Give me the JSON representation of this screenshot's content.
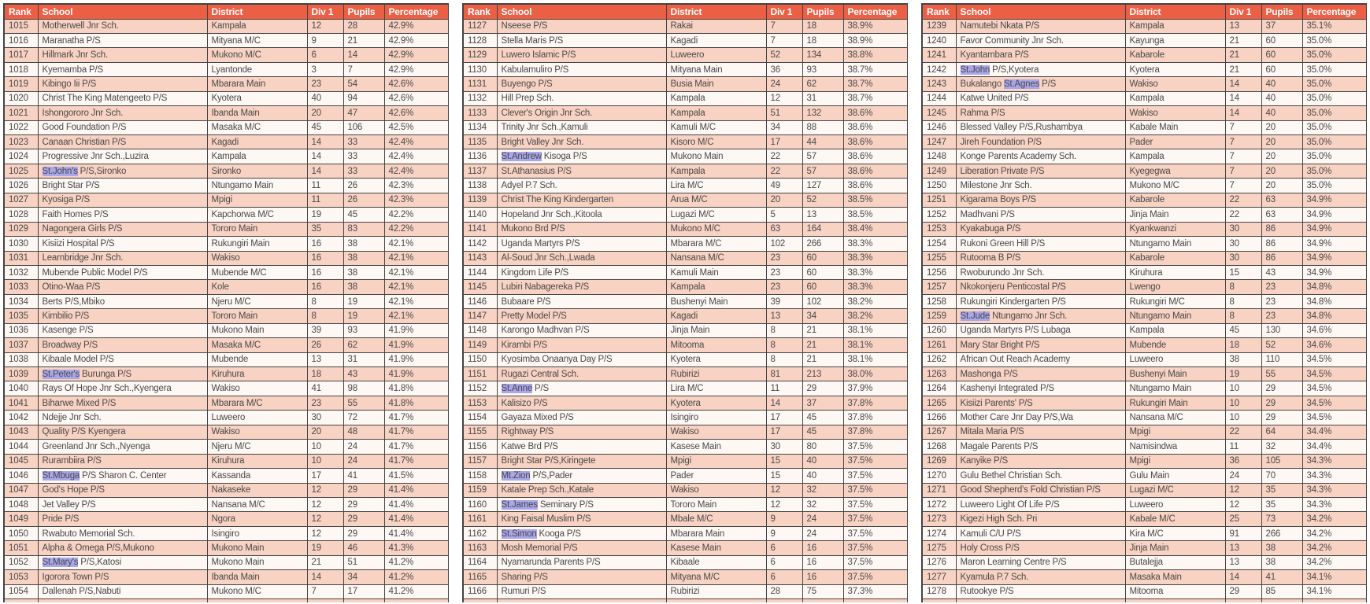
{
  "style": {
    "header_bg": "#eb5f45",
    "header_text": "#ffffff",
    "row_pink": "#f8d2c2",
    "row_light": "#fdf8f4",
    "highlight": "#a9a6e9",
    "border": "#444444",
    "text": "#4a4a4a",
    "page_bg": "#ffffff"
  },
  "columns": [
    "Rank",
    "School",
    "District",
    "Div 1",
    "Pupils",
    "Percentage"
  ],
  "tables": [
    {
      "name": "ranks-1015-1054",
      "rows": [
        [
          "1015",
          "Motherwell Jnr Sch.",
          "Kampala",
          "12",
          "28",
          "42.9%"
        ],
        [
          "1016",
          "Maranatha P/S",
          "Mityana M/C",
          "9",
          "21",
          "42.9%"
        ],
        [
          "1017",
          "Hillmark Jnr Sch.",
          "Mukono M/C",
          "6",
          "14",
          "42.9%"
        ],
        [
          "1018",
          "Kyemamba P/S",
          "Lyantonde",
          "3",
          "7",
          "42.9%"
        ],
        [
          "1019",
          "Kibingo Iii P/S",
          "Mbarara Main",
          "23",
          "54",
          "42.6%"
        ],
        [
          "1020",
          "Christ The King Matengeeto P/S",
          "Kyotera",
          "40",
          "94",
          "42.6%"
        ],
        [
          "1021",
          "Ishongororo Jnr Sch.",
          "Ibanda Main",
          "20",
          "47",
          "42.6%"
        ],
        [
          "1022",
          "Good Foundation P/S",
          "Masaka M/C",
          "45",
          "106",
          "42.5%"
        ],
        [
          "1023",
          "Canaan Christian P/S",
          "Kagadi",
          "14",
          "33",
          "42.4%"
        ],
        [
          "1024",
          "Progressive Jnr Sch.,Luzira",
          "Kampala",
          "14",
          "33",
          "42.4%"
        ],
        [
          "1025",
          [
            [
              "St.John's",
              1
            ],
            [
              " P/S,Sironko",
              0
            ]
          ],
          "Sironko",
          "14",
          "33",
          "42.4%"
        ],
        [
          "1026",
          "Bright Star P/S",
          "Ntungamo Main",
          "11",
          "26",
          "42.3%"
        ],
        [
          "1027",
          "Kyosiga P/S",
          "Mpigi",
          "11",
          "26",
          "42.3%"
        ],
        [
          "1028",
          "Faith Homes P/S",
          "Kapchorwa M/C",
          "19",
          "45",
          "42.2%"
        ],
        [
          "1029",
          "Nagongera Girls P/S",
          "Tororo Main",
          "35",
          "83",
          "42.2%"
        ],
        [
          "1030",
          "Kisiizi Hospital P/S",
          "Rukungiri Main",
          "16",
          "38",
          "42.1%"
        ],
        [
          "1031",
          "Learnbridge Jnr Sch.",
          "Wakiso",
          "16",
          "38",
          "42.1%"
        ],
        [
          "1032",
          "Mubende Public Model P/S",
          "Mubende M/C",
          "16",
          "38",
          "42.1%"
        ],
        [
          "1033",
          "Otino-Waa P/S",
          "Kole",
          "16",
          "38",
          "42.1%"
        ],
        [
          "1034",
          "Berts P/S,Mbiko",
          "Njeru M/C",
          "8",
          "19",
          "42.1%"
        ],
        [
          "1035",
          "Kimbilio P/S",
          "Tororo Main",
          "8",
          "19",
          "42.1%"
        ],
        [
          "1036",
          "Kasenge P/S",
          "Mukono Main",
          "39",
          "93",
          "41.9%"
        ],
        [
          "1037",
          "Broadway P/S",
          "Masaka M/C",
          "26",
          "62",
          "41.9%"
        ],
        [
          "1038",
          "Kibaale Model P/S",
          "Mubende",
          "13",
          "31",
          "41.9%"
        ],
        [
          "1039",
          [
            [
              "St.Peter's",
              1
            ],
            [
              " Burunga P/S",
              0
            ]
          ],
          "Kiruhura",
          "18",
          "43",
          "41.9%"
        ],
        [
          "1040",
          "Rays Of Hope Jnr Sch.,Kyengera",
          "Wakiso",
          "41",
          "98",
          "41.8%"
        ],
        [
          "1041",
          "Biharwe Mixed P/S",
          "Mbarara M/C",
          "23",
          "55",
          "41.8%"
        ],
        [
          "1042",
          "Ndejje Jnr Sch.",
          "Luweero",
          "30",
          "72",
          "41.7%"
        ],
        [
          "1043",
          "Quality P/S Kyengera",
          "Wakiso",
          "20",
          "48",
          "41.7%"
        ],
        [
          "1044",
          "Greenland Jnr Sch.,Nyenga",
          "Njeru M/C",
          "10",
          "24",
          "41.7%"
        ],
        [
          "1045",
          "Rurambiira P/S",
          "Kiruhura",
          "10",
          "24",
          "41.7%"
        ],
        [
          "1046",
          [
            [
              "St.Mbuga",
              1
            ],
            [
              " P/S Sharon C. Center",
              0
            ]
          ],
          "Kassanda",
          "17",
          "41",
          "41.5%"
        ],
        [
          "1047",
          "God's Hope P/S",
          "Nakaseke",
          "12",
          "29",
          "41.4%"
        ],
        [
          "1048",
          "Jet Valley P/S",
          "Nansana M/C",
          "12",
          "29",
          "41.4%"
        ],
        [
          "1049",
          "Pride P/S",
          "Ngora",
          "12",
          "29",
          "41.4%"
        ],
        [
          "1050",
          "Rwabuto Memorial Sch.",
          "Isingiro",
          "12",
          "29",
          "41.4%"
        ],
        [
          "1051",
          "Alpha & Omega P/S,Mukono",
          "Mukono Main",
          "19",
          "46",
          "41.3%"
        ],
        [
          "1052",
          [
            [
              "St.Mary's",
              1
            ],
            [
              " P/S,Katosi",
              0
            ]
          ],
          "Mukono Main",
          "21",
          "51",
          "41.2%"
        ],
        [
          "1053",
          "Igorora Town P/S",
          "Ibanda Main",
          "14",
          "34",
          "41.2%"
        ],
        [
          "1054",
          "Dallenah P/S,Nabuti",
          "Mukono M/C",
          "7",
          "17",
          "41.2%"
        ],
        [
          "",
          "",
          "",
          "",
          "",
          ""
        ]
      ]
    },
    {
      "name": "ranks-1127-1166",
      "rows": [
        [
          "1127",
          "Nseese P/S",
          "Rakai",
          "7",
          "18",
          "38.9%"
        ],
        [
          "1128",
          "Stella Maris P/S",
          "Kagadi",
          "7",
          "18",
          "38.9%"
        ],
        [
          "1129",
          "Luwero Islamic P/S",
          "Luweero",
          "52",
          "134",
          "38.8%"
        ],
        [
          "1130",
          "Kabulamuliro P/S",
          "Mityana Main",
          "36",
          "93",
          "38.7%"
        ],
        [
          "1131",
          "Buyengo P/S",
          "Busia Main",
          "24",
          "62",
          "38.7%"
        ],
        [
          "1132",
          "Hill Prep Sch.",
          "Kampala",
          "12",
          "31",
          "38.7%"
        ],
        [
          "1133",
          "Clever's Origin Jnr Sch.",
          "Kampala",
          "51",
          "132",
          "38.6%"
        ],
        [
          "1134",
          "Trinity Jnr Sch.,Kamuli",
          "Kamuli M/C",
          "34",
          "88",
          "38.6%"
        ],
        [
          "1135",
          "Bright Valley Jnr Sch.",
          "Kisoro M/C",
          "17",
          "44",
          "38.6%"
        ],
        [
          "1136",
          [
            [
              "St.Andrew",
              1
            ],
            [
              " Kisoga P/S",
              0
            ]
          ],
          "Mukono Main",
          "22",
          "57",
          "38.6%"
        ],
        [
          "1137",
          "St.Athanasius P/S",
          "Kampala",
          "22",
          "57",
          "38.6%"
        ],
        [
          "1138",
          "Adyel P.7 Sch.",
          "Lira M/C",
          "49",
          "127",
          "38.6%"
        ],
        [
          "1139",
          "Christ The King Kindergarten",
          "Arua M/C",
          "20",
          "52",
          "38.5%"
        ],
        [
          "1140",
          "Hopeland Jnr Sch.,Kitoola",
          "Lugazi M/C",
          "5",
          "13",
          "38.5%"
        ],
        [
          "1141",
          "Mukono Brd P/S",
          "Mukono M/C",
          "63",
          "164",
          "38.4%"
        ],
        [
          "1142",
          "Uganda Martyrs P/S",
          "Mbarara M/C",
          "102",
          "266",
          "38.3%"
        ],
        [
          "1143",
          "Al-Soud Jnr Sch.,Lwada",
          "Nansana M/C",
          "23",
          "60",
          "38.3%"
        ],
        [
          "1144",
          "Kingdom Life P/S",
          "Kamuli Main",
          "23",
          "60",
          "38.3%"
        ],
        [
          "1145",
          "Lubiri Nabagereka P/S",
          "Kampala",
          "23",
          "60",
          "38.3%"
        ],
        [
          "1146",
          "Bubaare P/S",
          "Bushenyi Main",
          "39",
          "102",
          "38.2%"
        ],
        [
          "1147",
          "Pretty Model P/S",
          "Kagadi",
          "13",
          "34",
          "38.2%"
        ],
        [
          "1148",
          "Karongo Madhvan P/S",
          "Jinja Main",
          "8",
          "21",
          "38.1%"
        ],
        [
          "1149",
          "Kirambi P/S",
          "Mitooma",
          "8",
          "21",
          "38.1%"
        ],
        [
          "1150",
          "Kyosimba Onaanya Day P/S",
          "Kyotera",
          "8",
          "21",
          "38.1%"
        ],
        [
          "1151",
          "Rugazi Central Sch.",
          "Rubirizi",
          "81",
          "213",
          "38.0%"
        ],
        [
          "1152",
          [
            [
              "St.Anne",
              1
            ],
            [
              " P/S",
              0
            ]
          ],
          "Lira M/C",
          "11",
          "29",
          "37.9%"
        ],
        [
          "1153",
          "Kalisizo P/S",
          "Kyotera",
          "14",
          "37",
          "37.8%"
        ],
        [
          "1154",
          "Gayaza Mixed P/S",
          "Isingiro",
          "17",
          "45",
          "37.8%"
        ],
        [
          "1155",
          "Rightway P/S",
          "Wakiso",
          "17",
          "45",
          "37.8%"
        ],
        [
          "1156",
          "Katwe Brd P/S",
          "Kasese Main",
          "30",
          "80",
          "37.5%"
        ],
        [
          "1157",
          "Bright Star P/S,Kiringete",
          "Mpigi",
          "15",
          "40",
          "37.5%"
        ],
        [
          "1158",
          [
            [
              "Mt.Zion",
              1
            ],
            [
              " P/S,Pader",
              0
            ]
          ],
          "Pader",
          "15",
          "40",
          "37.5%"
        ],
        [
          "1159",
          "Katale Prep Sch.,Katale",
          "Wakiso",
          "12",
          "32",
          "37.5%"
        ],
        [
          "1160",
          [
            [
              "St.James",
              1
            ],
            [
              " Seminary P/S",
              0
            ]
          ],
          "Tororo Main",
          "12",
          "32",
          "37.5%"
        ],
        [
          "1161",
          "King Faisal Muslim P/S",
          "Mbale M/C",
          "9",
          "24",
          "37.5%"
        ],
        [
          "1162",
          [
            [
              "St.Simon",
              1
            ],
            [
              " Kooga P/S",
              0
            ]
          ],
          "Mbarara Main",
          "9",
          "24",
          "37.5%"
        ],
        [
          "1163",
          "Mosh Memorial P/S",
          "Kasese Main",
          "6",
          "16",
          "37.5%"
        ],
        [
          "1164",
          "Nyamarunda Parents P/S",
          "Kibaale",
          "6",
          "16",
          "37.5%"
        ],
        [
          "1165",
          "Sharing P/S",
          "Mityana M/C",
          "6",
          "16",
          "37.5%"
        ],
        [
          "1166",
          "Rumuri P/S",
          "Rubirizi",
          "28",
          "75",
          "37.3%"
        ],
        [
          "",
          "",
          "",
          "",
          "",
          ""
        ]
      ]
    },
    {
      "name": "ranks-1239-1278",
      "rows": [
        [
          "1239",
          "Namutebi Nkata P/S",
          "Kampala",
          "13",
          "37",
          "35.1%"
        ],
        [
          "1240",
          "Favor Community Jnr Sch.",
          "Kayunga",
          "21",
          "60",
          "35.0%"
        ],
        [
          "1241",
          "Kyantambara P/S",
          "Kabarole",
          "21",
          "60",
          "35.0%"
        ],
        [
          "1242",
          [
            [
              "St.John",
              1
            ],
            [
              " P/S,Kyotera",
              0
            ]
          ],
          "Kyotera",
          "21",
          "60",
          "35.0%"
        ],
        [
          "1243",
          [
            [
              "Bukalango ",
              0
            ],
            [
              "St.Agnes",
              1
            ],
            [
              " P/S",
              0
            ]
          ],
          "Wakiso",
          "14",
          "40",
          "35.0%"
        ],
        [
          "1244",
          "Katwe United P/S",
          "Kampala",
          "14",
          "40",
          "35.0%"
        ],
        [
          "1245",
          "Rahma P/S",
          "Wakiso",
          "14",
          "40",
          "35.0%"
        ],
        [
          "1246",
          "Blessed Valley P/S,Rushambya",
          "Kabale Main",
          "7",
          "20",
          "35.0%"
        ],
        [
          "1247",
          "Jireh Foundation P/S",
          "Pader",
          "7",
          "20",
          "35.0%"
        ],
        [
          "1248",
          "Konge Parents Academy Sch.",
          "Kampala",
          "7",
          "20",
          "35.0%"
        ],
        [
          "1249",
          "Liberation Private P/S",
          "Kyegegwa",
          "7",
          "20",
          "35.0%"
        ],
        [
          "1250",
          "Milestone Jnr Sch.",
          "Mukono M/C",
          "7",
          "20",
          "35.0%"
        ],
        [
          "1251",
          "Kigarama Boys P/S",
          "Kabarole",
          "22",
          "63",
          "34.9%"
        ],
        [
          "1252",
          "Madhvani P/S",
          "Jinja Main",
          "22",
          "63",
          "34.9%"
        ],
        [
          "1253",
          "Kyakabuga P/S",
          "Kyankwanzi",
          "30",
          "86",
          "34.9%"
        ],
        [
          "1254",
          "Rukoni Green Hill P/S",
          "Ntungamo Main",
          "30",
          "86",
          "34.9%"
        ],
        [
          "1255",
          "Rutooma B P/S",
          "Kabarole",
          "30",
          "86",
          "34.9%"
        ],
        [
          "1256",
          "Rwoburundo Jnr Sch.",
          "Kiruhura",
          "15",
          "43",
          "34.9%"
        ],
        [
          "1257",
          "Nkokonjeru Penticostal P/S",
          "Lwengo",
          "8",
          "23",
          "34.8%"
        ],
        [
          "1258",
          "Rukungiri Kindergarten P/S",
          "Rukungiri M/C",
          "8",
          "23",
          "34.8%"
        ],
        [
          "1259",
          [
            [
              "St.Jude",
              1
            ],
            [
              " Ntungamo Jnr Sch.",
              0
            ]
          ],
          "Ntungamo Main",
          "8",
          "23",
          "34.8%"
        ],
        [
          "1260",
          "Uganda Martyrs P/S Lubaga",
          "Kampala",
          "45",
          "130",
          "34.6%"
        ],
        [
          "1261",
          "Mary Star Bright P/S",
          "Mubende",
          "18",
          "52",
          "34.6%"
        ],
        [
          "1262",
          "African Out Reach Academy",
          "Luweero",
          "38",
          "110",
          "34.5%"
        ],
        [
          "1263",
          "Mashonga P/S",
          "Bushenyi Main",
          "19",
          "55",
          "34.5%"
        ],
        [
          "1264",
          "Kashenyi Integrated P/S",
          "Ntungamo Main",
          "10",
          "29",
          "34.5%"
        ],
        [
          "1265",
          "Kisiizi Parents' P/S",
          "Rukungiri Main",
          "10",
          "29",
          "34.5%"
        ],
        [
          "1266",
          "Mother Care Jnr Day P/S,Wa",
          "Nansana M/C",
          "10",
          "29",
          "34.5%"
        ],
        [
          "1267",
          "Mitala Maria P/S",
          "Mpigi",
          "22",
          "64",
          "34.4%"
        ],
        [
          "1268",
          "Magale Parents P/S",
          "Namisindwa",
          "11",
          "32",
          "34.4%"
        ],
        [
          "1269",
          "Kanyike P/S",
          "Mpigi",
          "36",
          "105",
          "34.3%"
        ],
        [
          "1270",
          "Gulu Bethel Christian Sch.",
          "Gulu Main",
          "24",
          "70",
          "34.3%"
        ],
        [
          "1271",
          "Good Shepherd's Fold Christian P/S",
          "Lugazi M/C",
          "12",
          "35",
          "34.3%"
        ],
        [
          "1272",
          "Luweero Light Of Life P/S",
          "Luweero",
          "12",
          "35",
          "34.3%"
        ],
        [
          "1273",
          "Kigezi High Sch. Pri",
          "Kabale M/C",
          "25",
          "73",
          "34.2%"
        ],
        [
          "1274",
          "Kamuli C/U P/S",
          "Kira M/C",
          "91",
          "266",
          "34.2%"
        ],
        [
          "1275",
          "Holy Cross P/S",
          "Jinja Main",
          "13",
          "38",
          "34.2%"
        ],
        [
          "1276",
          "Maron Learning Centre P/S",
          "Butalejja",
          "13",
          "38",
          "34.2%"
        ],
        [
          "1277",
          "Kyamula P.7 Sch.",
          "Masaka Main",
          "14",
          "41",
          "34.1%"
        ],
        [
          "1278",
          "Rutookye P/S",
          "Mitooma",
          "29",
          "85",
          "34.1%"
        ],
        [
          "",
          "",
          "",
          "",
          "",
          ""
        ]
      ]
    }
  ]
}
